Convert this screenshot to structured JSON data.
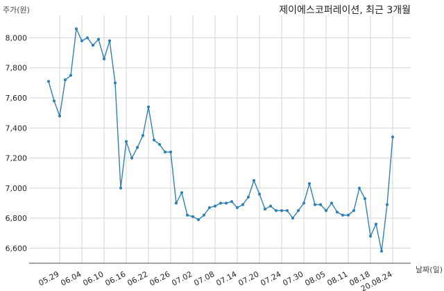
{
  "chart_data": {
    "type": "line",
    "title": "제이에스코퍼레이션, 최근 3개월",
    "ylabel": "주가(원)",
    "xlabel": "날짜(일)",
    "ylim": [
      6500,
      8150
    ],
    "yticks": [
      6600,
      6800,
      7000,
      7200,
      7400,
      7600,
      7800,
      8000
    ],
    "ytick_labels": [
      "6,600",
      "6,800",
      "7,000",
      "7,200",
      "7,400",
      "7,600",
      "7,800",
      "8,000"
    ],
    "grid": true,
    "line_color": "#2f7fb3",
    "xtick_labels": [
      "05.29",
      "06.04",
      "06.10",
      "06.16",
      "06.22",
      "06.26",
      "07.02",
      "07.08",
      "07.14",
      "07.20",
      "07.24",
      "07.30",
      "08.05",
      "08.11",
      "08.18",
      "20.08.24"
    ],
    "xtick_index": [
      2,
      6,
      10,
      14,
      18,
      22,
      26,
      30,
      34,
      38,
      42,
      46,
      50,
      54,
      58,
      62
    ],
    "series": [
      {
        "values": [
          7710,
          7580,
          7480,
          7720,
          7750,
          8060,
          7980,
          8000,
          7950,
          7990,
          7860,
          7980,
          7700,
          7000,
          7310,
          7200,
          7270,
          7350,
          7540,
          7320,
          7290,
          7240,
          7240,
          6900,
          6970,
          6820,
          6810,
          6790,
          6820,
          6870,
          6880,
          6900,
          6900,
          6910,
          6870,
          6890,
          6940,
          7050,
          6960,
          6860,
          6880,
          6850,
          6850,
          6850,
          6800,
          6850,
          6900,
          7030,
          6890,
          6890,
          6850,
          6900,
          6840,
          6820,
          6820,
          6850,
          7000,
          6930,
          6680,
          6760,
          6580,
          6890,
          7340
        ]
      }
    ]
  }
}
